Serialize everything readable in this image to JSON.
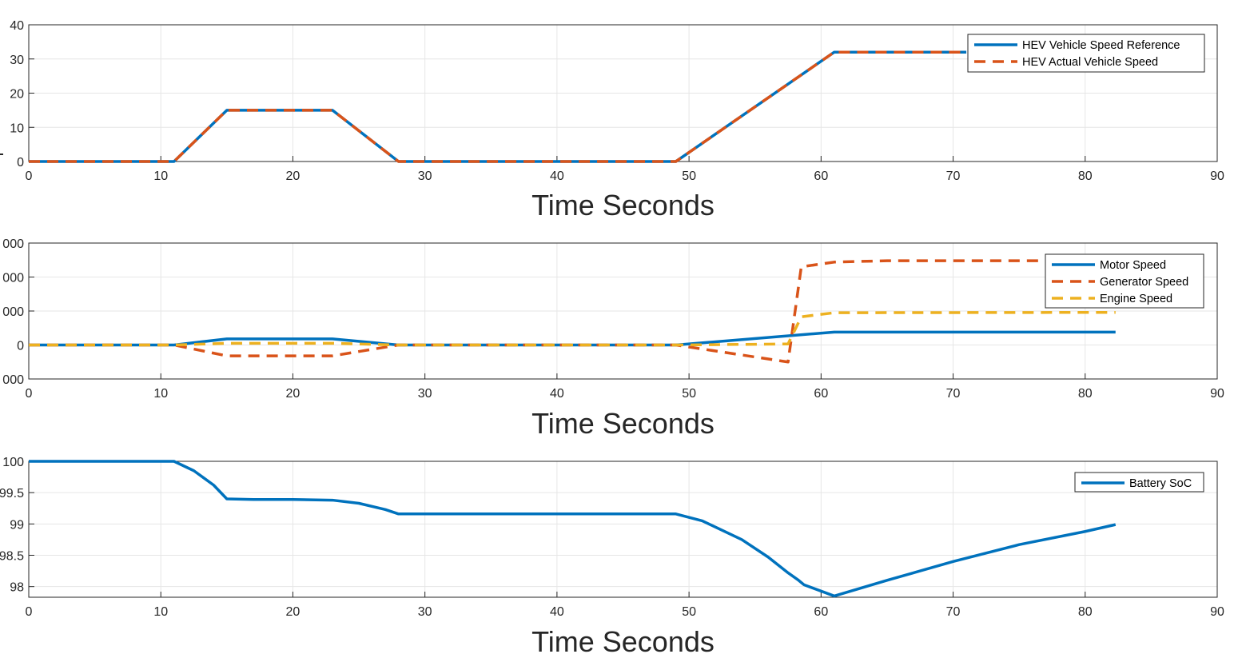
{
  "chart_data": [
    {
      "type": "line",
      "xlabel": "Time Seconds",
      "ylabel": "",
      "xlim": [
        0,
        90
      ],
      "ylim": [
        0,
        40
      ],
      "xticks": [
        0,
        10,
        20,
        30,
        40,
        50,
        60,
        70,
        80,
        90
      ],
      "yticks": [
        0,
        10,
        20,
        30,
        40
      ],
      "ytick_labels": [
        "0",
        "10",
        "20",
        "30",
        "40"
      ],
      "grid": true,
      "legend_position": "top-right",
      "series": [
        {
          "name": "HEV Vehicle Speed Reference",
          "color": "#0072BD",
          "style": "solid",
          "x": [
            0,
            11,
            15,
            23,
            28,
            49,
            61,
            71
          ],
          "y": [
            0,
            0,
            15,
            15,
            0,
            0,
            32,
            32
          ]
        },
        {
          "name": "HEV Actual Vehicle Speed",
          "color": "#D95319",
          "style": "dashed",
          "x": [
            0,
            11,
            15,
            23,
            28,
            49,
            61,
            71
          ],
          "y": [
            0,
            0,
            15,
            15,
            0,
            0,
            32,
            32
          ]
        }
      ]
    },
    {
      "type": "line",
      "xlabel": "Time Seconds",
      "ylabel": "",
      "xlim": [
        0,
        90
      ],
      "ylim": [
        -1000,
        3000
      ],
      "xticks": [
        0,
        10,
        20,
        30,
        40,
        50,
        60,
        70,
        80,
        90
      ],
      "yticks": [
        -1000,
        0,
        1000,
        2000,
        3000
      ],
      "ytick_labels": [
        "000",
        "0",
        "000",
        "000",
        "000"
      ],
      "grid": true,
      "legend_position": "top-right",
      "series": [
        {
          "name": "Motor Speed",
          "color": "#0072BD",
          "style": "solid",
          "x": [
            0,
            11,
            15,
            23,
            28,
            49,
            61,
            82.3
          ],
          "y": [
            0,
            0,
            180,
            180,
            0,
            0,
            380,
            380
          ]
        },
        {
          "name": "Generator Speed",
          "color": "#D95319",
          "style": "dashed",
          "x": [
            0,
            11,
            15,
            23,
            28,
            49,
            57.5,
            58.5,
            61,
            65,
            82.3
          ],
          "y": [
            0,
            0,
            -320,
            -320,
            0,
            0,
            -500,
            2300,
            2440,
            2480,
            2480
          ]
        },
        {
          "name": "Engine Speed",
          "color": "#EDB120",
          "style": "dashed",
          "x": [
            0,
            11,
            15,
            23,
            28,
            49,
            57.5,
            58.5,
            61,
            82.3
          ],
          "y": [
            0,
            0,
            50,
            50,
            0,
            0,
            30,
            830,
            950,
            960
          ]
        }
      ]
    },
    {
      "type": "line",
      "xlabel": "Time Seconds",
      "ylabel": "",
      "xlim": [
        0,
        90
      ],
      "ylim": [
        97.83,
        100
      ],
      "xticks": [
        0,
        10,
        20,
        30,
        40,
        50,
        60,
        70,
        80,
        90
      ],
      "yticks": [
        98,
        98.5,
        99,
        99.5,
        100
      ],
      "ytick_labels": [
        "98",
        "98.5",
        "99",
        "99.5",
        "100"
      ],
      "grid": true,
      "legend_position": "top-right",
      "series": [
        {
          "name": "Battery SoC",
          "color": "#0072BD",
          "style": "solid",
          "x": [
            0,
            11,
            12.5,
            14,
            15,
            17,
            20,
            23,
            25,
            27,
            28,
            49,
            51,
            54,
            56,
            57.5,
            58.3,
            58.7,
            61,
            65,
            70,
            75,
            80,
            82.3
          ],
          "y": [
            100,
            100,
            99.85,
            99.62,
            99.4,
            99.39,
            99.39,
            99.38,
            99.33,
            99.23,
            99.16,
            99.16,
            99.05,
            98.75,
            98.47,
            98.22,
            98.1,
            98.03,
            97.85,
            98.1,
            98.4,
            98.67,
            98.88,
            98.99
          ]
        }
      ]
    }
  ]
}
